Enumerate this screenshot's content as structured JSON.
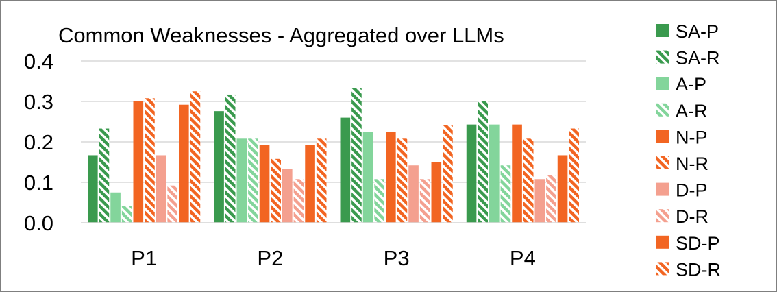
{
  "chart_data": {
    "type": "bar",
    "title": "Common Weaknesses - Aggregated over LLMs",
    "xlabel": "",
    "ylabel": "",
    "categories": [
      "P1",
      "P2",
      "P3",
      "P4"
    ],
    "ylim": [
      0,
      0.4
    ],
    "yticks": [
      "0.0",
      "0.1",
      "0.2",
      "0.3",
      "0.4"
    ],
    "grid": true,
    "legend_position": "right",
    "series": [
      {
        "name": "SA-P",
        "values": [
          0.167,
          0.276,
          0.26,
          0.243
        ],
        "color": "#3a9a4e",
        "pattern": "solid"
      },
      {
        "name": "SA-R",
        "values": [
          0.233,
          0.317,
          0.333,
          0.3
        ],
        "color": "#3a9a4e",
        "pattern": "hatch"
      },
      {
        "name": "A-P",
        "values": [
          0.075,
          0.208,
          0.225,
          0.243
        ],
        "color": "#83d59b",
        "pattern": "solid"
      },
      {
        "name": "A-R",
        "values": [
          0.042,
          0.208,
          0.108,
          0.142
        ],
        "color": "#83d59b",
        "pattern": "hatch"
      },
      {
        "name": "N-P",
        "values": [
          0.3,
          0.192,
          0.225,
          0.243
        ],
        "color": "#f26522",
        "pattern": "solid"
      },
      {
        "name": "N-R",
        "values": [
          0.308,
          0.158,
          0.208,
          0.208
        ],
        "color": "#f26522",
        "pattern": "hatch"
      },
      {
        "name": "D-P",
        "values": [
          0.167,
          0.133,
          0.142,
          0.108
        ],
        "color": "#f4a08f",
        "pattern": "solid"
      },
      {
        "name": "D-R",
        "values": [
          0.092,
          0.108,
          0.108,
          0.117
        ],
        "color": "#f4a08f",
        "pattern": "hatch"
      },
      {
        "name": "SD-P",
        "values": [
          0.292,
          0.192,
          0.15,
          0.167
        ],
        "color": "#f26522",
        "pattern": "solid"
      },
      {
        "name": "SD-R",
        "values": [
          0.325,
          0.208,
          0.242,
          0.233
        ],
        "color": "#f26522",
        "pattern": "hatch"
      }
    ]
  }
}
